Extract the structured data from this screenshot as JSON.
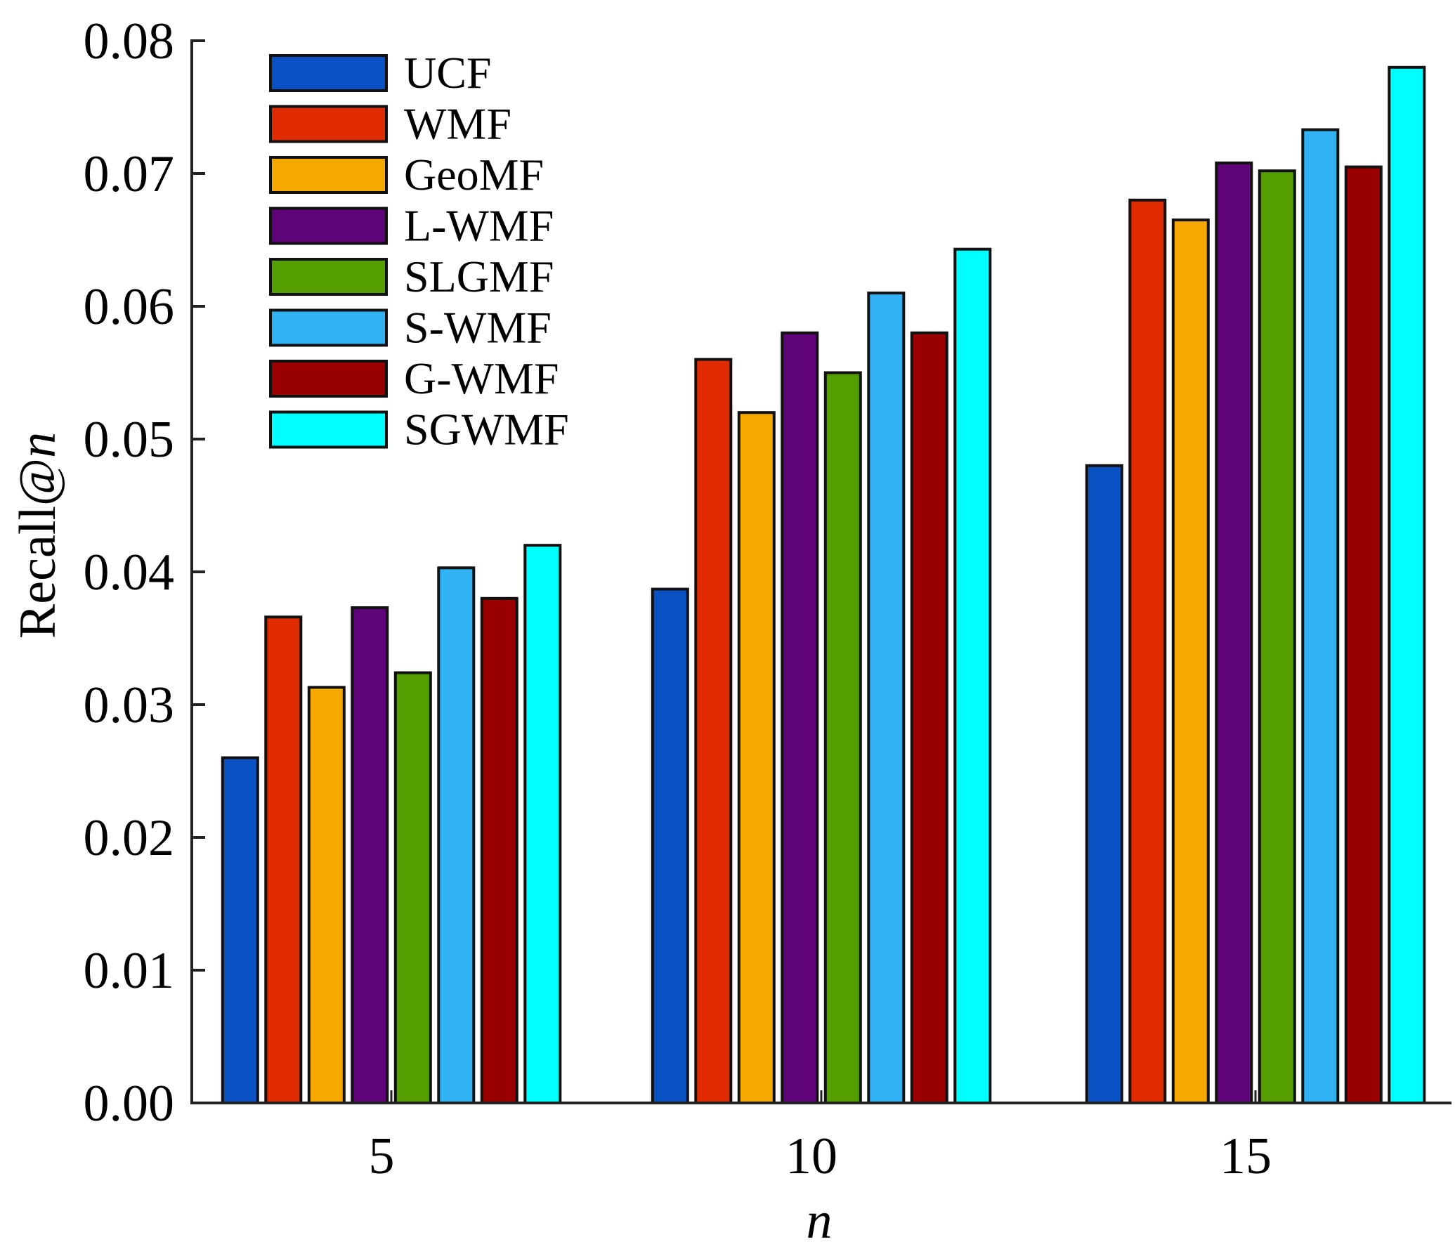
{
  "chart_data": {
    "type": "bar",
    "title": "",
    "xlabel": "n",
    "ylabel_prefix": "Recall@",
    "ylabel_var": "n",
    "ylabel": "Recall@n",
    "categories": [
      "5",
      "10",
      "15"
    ],
    "ylim": [
      0.0,
      0.08
    ],
    "yticks": [
      "0.00",
      "0.01",
      "0.02",
      "0.03",
      "0.04",
      "0.05",
      "0.06",
      "0.07",
      "0.08"
    ],
    "ytick_values": [
      0.0,
      0.01,
      0.02,
      0.03,
      0.04,
      0.05,
      0.06,
      0.07,
      0.08
    ],
    "grid": false,
    "legend_position": "top-left",
    "series": [
      {
        "name": "UCF",
        "color": "#0a52c4",
        "values": [
          0.026,
          0.0387,
          0.048
        ]
      },
      {
        "name": "WMF",
        "color": "#e02a00",
        "values": [
          0.0366,
          0.056,
          0.068
        ]
      },
      {
        "name": "GeoMF",
        "color": "#f5a800",
        "values": [
          0.0313,
          0.052,
          0.0665
        ]
      },
      {
        "name": "L-WMF",
        "color": "#5e0478",
        "values": [
          0.0373,
          0.058,
          0.0708
        ]
      },
      {
        "name": "SLGMF",
        "color": "#55a000",
        "values": [
          0.0324,
          0.055,
          0.0702
        ]
      },
      {
        "name": "S-WMF",
        "color": "#30b2f5",
        "values": [
          0.0403,
          0.061,
          0.0733
        ]
      },
      {
        "name": "G-WMF",
        "color": "#990000",
        "values": [
          0.038,
          0.058,
          0.0705
        ]
      },
      {
        "name": "SGWMF",
        "color": "#00ffff",
        "values": [
          0.042,
          0.0643,
          0.078
        ]
      }
    ]
  }
}
